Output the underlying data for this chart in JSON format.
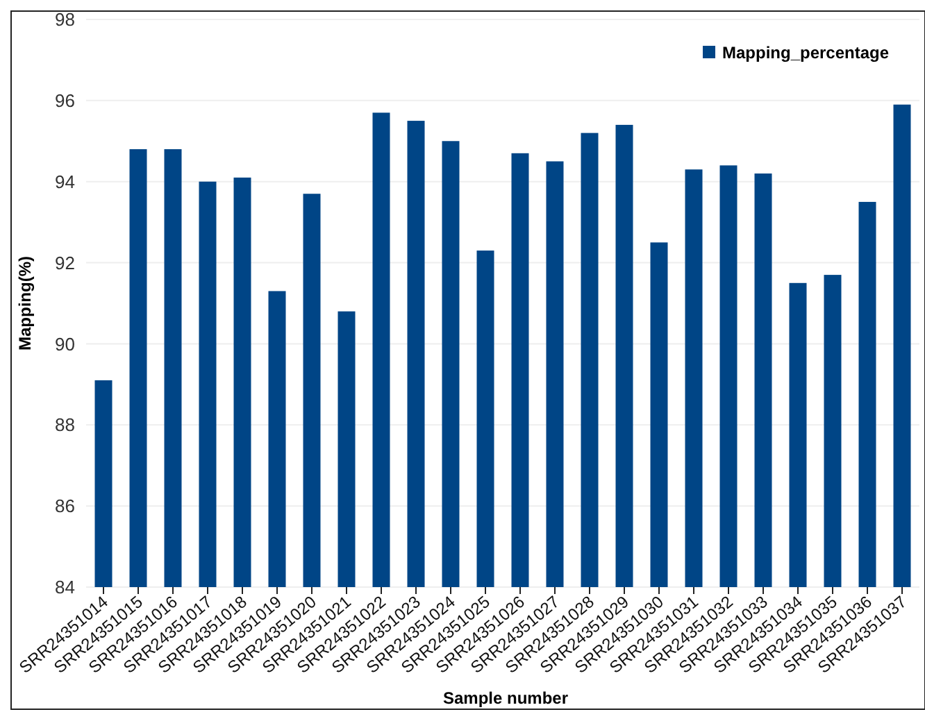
{
  "chart_data": {
    "type": "bar",
    "xlabel": "Sample number",
    "ylabel": "Mapping(%)",
    "categories": [
      "SRR24351014",
      "SRR24351015",
      "SRR24351016",
      "SRR24351017",
      "SRR24351018",
      "SRR24351019",
      "SRR24351020",
      "SRR24351021",
      "SRR24351022",
      "SRR24351023",
      "SRR24351024",
      "SRR24351025",
      "SRR24351026",
      "SRR24351027",
      "SRR24351028",
      "SRR24351029",
      "SRR24351030",
      "SRR24351031",
      "SRR24351032",
      "SRR24351033",
      "SRR24351034",
      "SRR24351035",
      "SRR24351036",
      "SRR24351037"
    ],
    "series": [
      {
        "name": "Mapping_percentage",
        "color": "#004586",
        "values": [
          89.1,
          94.8,
          94.8,
          94.0,
          94.1,
          91.3,
          93.7,
          90.8,
          95.7,
          95.5,
          95.0,
          92.3,
          94.7,
          94.5,
          95.2,
          95.4,
          92.5,
          94.3,
          94.4,
          94.2,
          91.5,
          91.7,
          93.5,
          95.9
        ]
      }
    ],
    "ylim": [
      84,
      98
    ],
    "yticks": [
      84,
      86,
      88,
      90,
      92,
      94,
      96,
      98
    ],
    "grid": "y",
    "legend": "top right"
  }
}
